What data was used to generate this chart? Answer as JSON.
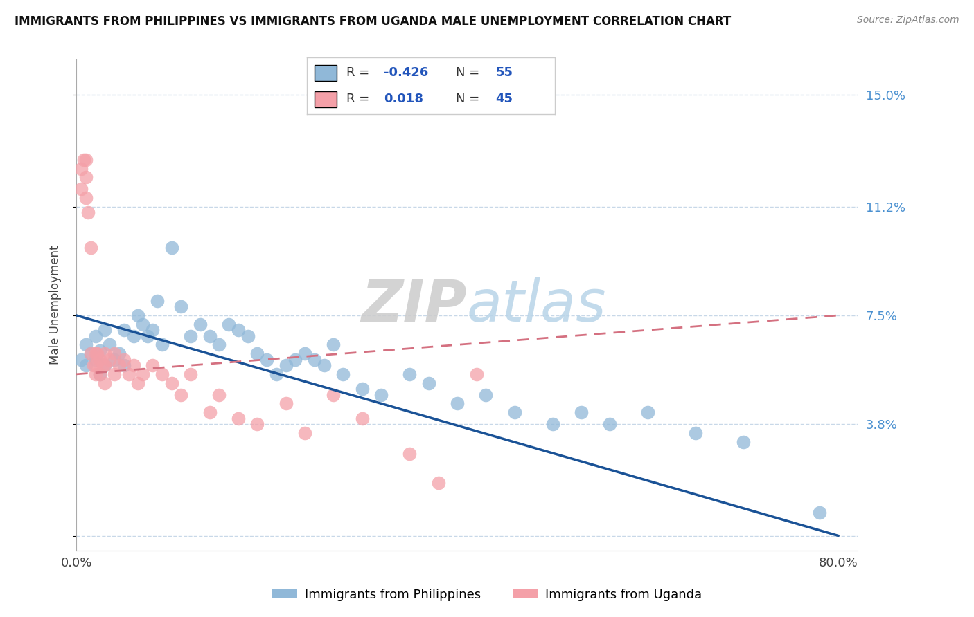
{
  "title": "IMMIGRANTS FROM PHILIPPINES VS IMMIGRANTS FROM UGANDA MALE UNEMPLOYMENT CORRELATION CHART",
  "source": "Source: ZipAtlas.com",
  "ylabel": "Male Unemployment",
  "xlim": [
    0.0,
    0.82
  ],
  "ylim": [
    -0.005,
    0.162
  ],
  "yticks": [
    0.0,
    0.038,
    0.075,
    0.112,
    0.15
  ],
  "xticks": [
    0.0,
    0.1,
    0.2,
    0.3,
    0.4,
    0.5,
    0.6,
    0.7,
    0.8
  ],
  "philippines_color": "#90b8d8",
  "uganda_color": "#f4a0a8",
  "philippines_line_color": "#1a5296",
  "uganda_line_color": "#d47080",
  "right_ytick_color": "#4a90d0",
  "grid_color": "#c8d8e8",
  "philippines_R": -0.426,
  "philippines_N": 55,
  "uganda_R": 0.018,
  "uganda_N": 45,
  "philippines_scatter_x": [
    0.005,
    0.01,
    0.01,
    0.015,
    0.02,
    0.02,
    0.025,
    0.025,
    0.03,
    0.03,
    0.035,
    0.04,
    0.045,
    0.05,
    0.05,
    0.06,
    0.065,
    0.07,
    0.075,
    0.08,
    0.085,
    0.09,
    0.1,
    0.11,
    0.12,
    0.13,
    0.14,
    0.15,
    0.16,
    0.17,
    0.18,
    0.19,
    0.2,
    0.21,
    0.22,
    0.23,
    0.24,
    0.25,
    0.26,
    0.27,
    0.28,
    0.3,
    0.32,
    0.35,
    0.37,
    0.4,
    0.43,
    0.46,
    0.5,
    0.53,
    0.56,
    0.6,
    0.65,
    0.7,
    0.78
  ],
  "philippines_scatter_y": [
    0.06,
    0.058,
    0.065,
    0.062,
    0.06,
    0.068,
    0.055,
    0.063,
    0.058,
    0.07,
    0.065,
    0.06,
    0.062,
    0.058,
    0.07,
    0.068,
    0.075,
    0.072,
    0.068,
    0.07,
    0.08,
    0.065,
    0.098,
    0.078,
    0.068,
    0.072,
    0.068,
    0.065,
    0.072,
    0.07,
    0.068,
    0.062,
    0.06,
    0.055,
    0.058,
    0.06,
    0.062,
    0.06,
    0.058,
    0.065,
    0.055,
    0.05,
    0.048,
    0.055,
    0.052,
    0.045,
    0.048,
    0.042,
    0.038,
    0.042,
    0.038,
    0.042,
    0.035,
    0.032,
    0.008
  ],
  "uganda_scatter_x": [
    0.005,
    0.005,
    0.008,
    0.01,
    0.01,
    0.01,
    0.012,
    0.015,
    0.015,
    0.018,
    0.02,
    0.02,
    0.02,
    0.022,
    0.025,
    0.025,
    0.028,
    0.03,
    0.03,
    0.03,
    0.035,
    0.04,
    0.04,
    0.045,
    0.05,
    0.055,
    0.06,
    0.065,
    0.07,
    0.08,
    0.09,
    0.1,
    0.11,
    0.12,
    0.14,
    0.15,
    0.17,
    0.19,
    0.22,
    0.24,
    0.27,
    0.3,
    0.35,
    0.38,
    0.42
  ],
  "uganda_scatter_y": [
    0.118,
    0.125,
    0.128,
    0.115,
    0.122,
    0.128,
    0.11,
    0.098,
    0.062,
    0.058,
    0.062,
    0.058,
    0.055,
    0.062,
    0.06,
    0.055,
    0.058,
    0.062,
    0.058,
    0.052,
    0.06,
    0.062,
    0.055,
    0.058,
    0.06,
    0.055,
    0.058,
    0.052,
    0.055,
    0.058,
    0.055,
    0.052,
    0.048,
    0.055,
    0.042,
    0.048,
    0.04,
    0.038,
    0.045,
    0.035,
    0.048,
    0.04,
    0.028,
    0.018,
    0.055
  ],
  "philippines_line_x": [
    0.0,
    0.8
  ],
  "philippines_line_y": [
    0.075,
    0.0
  ],
  "uganda_line_x": [
    0.0,
    0.8
  ],
  "uganda_line_y": [
    0.055,
    0.075
  ]
}
